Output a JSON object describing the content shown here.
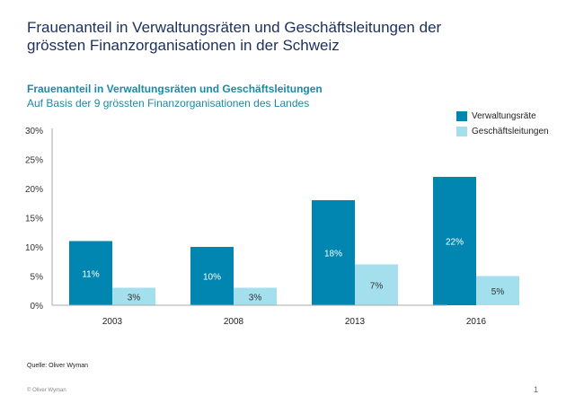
{
  "slide": {
    "title": "Frauenanteil in Verwaltungsräten und Geschäftsleitungen der grössten Finanzorganisationen in der Schweiz",
    "source": "Quelle: Oliver Wyman",
    "copyright": "© Oliver Wyman",
    "page_number": "1"
  },
  "chart_data": {
    "type": "bar",
    "title": "Frauenanteil in Verwaltungsräten und Geschäftsleitungen",
    "subtitle": "Auf Basis der 9 grössten Finanzorganisationen des Landes",
    "categories": [
      "2003",
      "2008",
      "2013",
      "2016"
    ],
    "series": [
      {
        "name": "Verwaltungsräte",
        "values": [
          11,
          10,
          18,
          22
        ],
        "labels": [
          "11%",
          "10%",
          "18%",
          "22%"
        ],
        "color": "#0086b0"
      },
      {
        "name": "Geschäftsleitungen",
        "values": [
          3,
          3,
          7,
          5
        ],
        "labels": [
          "3%",
          "3%",
          "7%",
          "5%"
        ],
        "color": "#a3dfec"
      }
    ],
    "yticks": [
      "0%",
      "5%",
      "10%",
      "15%",
      "20%",
      "25%",
      "30%"
    ],
    "ylim": [
      0,
      30
    ],
    "grid": false,
    "legend": "top-right"
  }
}
